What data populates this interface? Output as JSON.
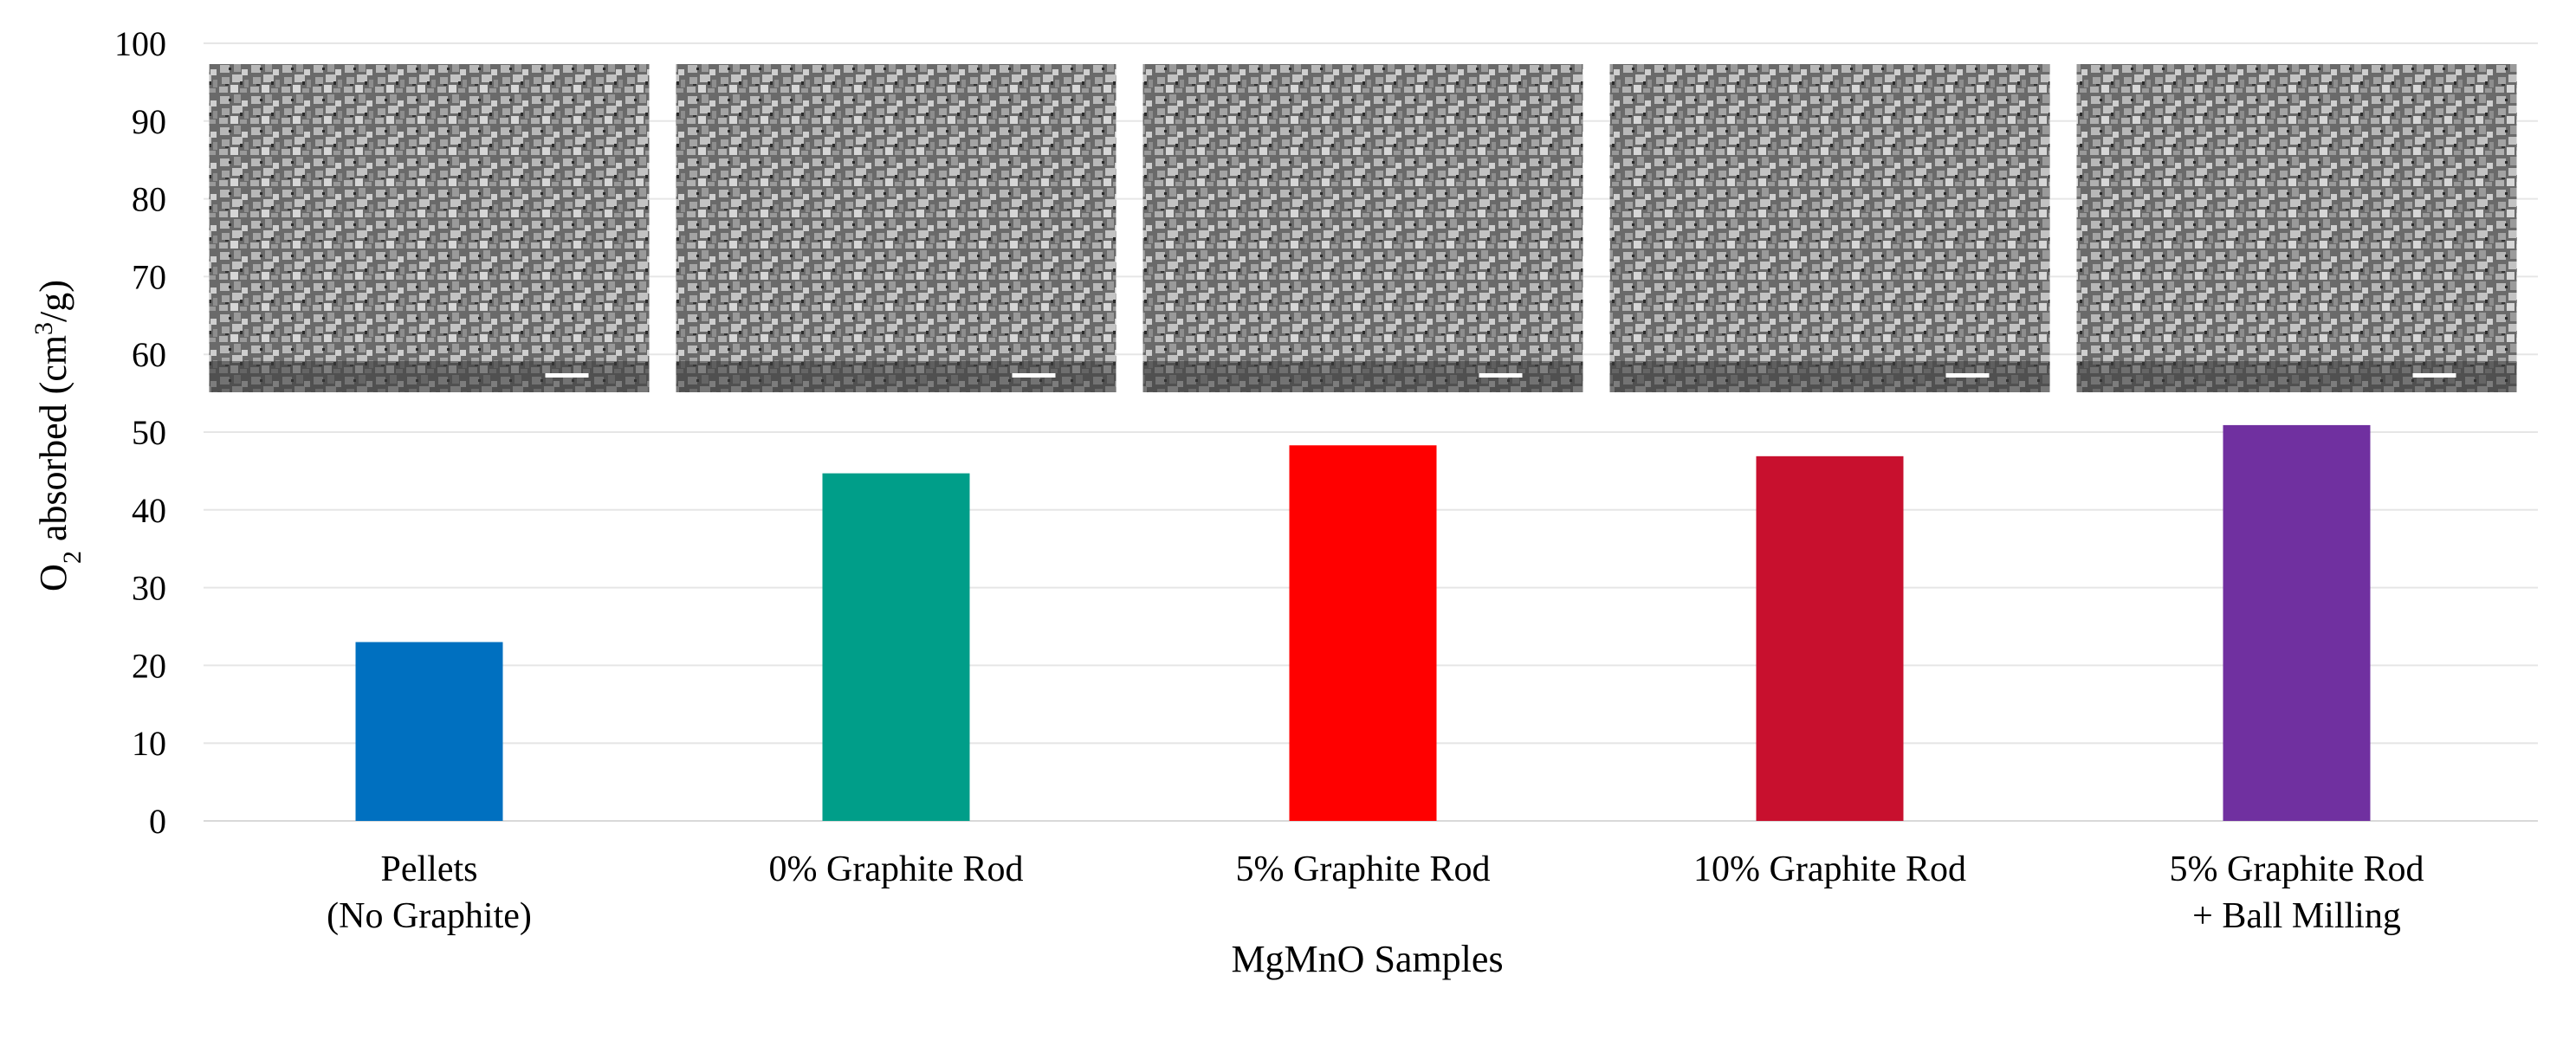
{
  "chart_data": {
    "type": "bar",
    "title": "",
    "xlabel": "MgMnO Samples",
    "ylabel": "O2 absorbed (cm3/g)",
    "ylabel_parts": {
      "pre": "O",
      "sub": "2",
      "mid": " absorbed (cm",
      "sup": "3",
      "post": "/g)"
    },
    "ylim": [
      0,
      100
    ],
    "ytick_step": 10,
    "grid": true,
    "categories": [
      [
        "Pellets",
        "(No Graphite)"
      ],
      [
        "0% Graphite Rod"
      ],
      [
        "5% Graphite Rod"
      ],
      [
        "10% Graphite Rod"
      ],
      [
        "5% Graphite Rod",
        "+ Ball Milling"
      ]
    ],
    "values": [
      23,
      44.7,
      48.3,
      46.9,
      50.9
    ],
    "colors": [
      "#0070C0",
      "#009E89",
      "#FF0000",
      "#C8102E",
      "#7030A0"
    ],
    "insets": [
      "SEM micrograph",
      "SEM micrograph",
      "SEM micrograph",
      "SEM micrograph",
      "SEM micrograph"
    ]
  }
}
